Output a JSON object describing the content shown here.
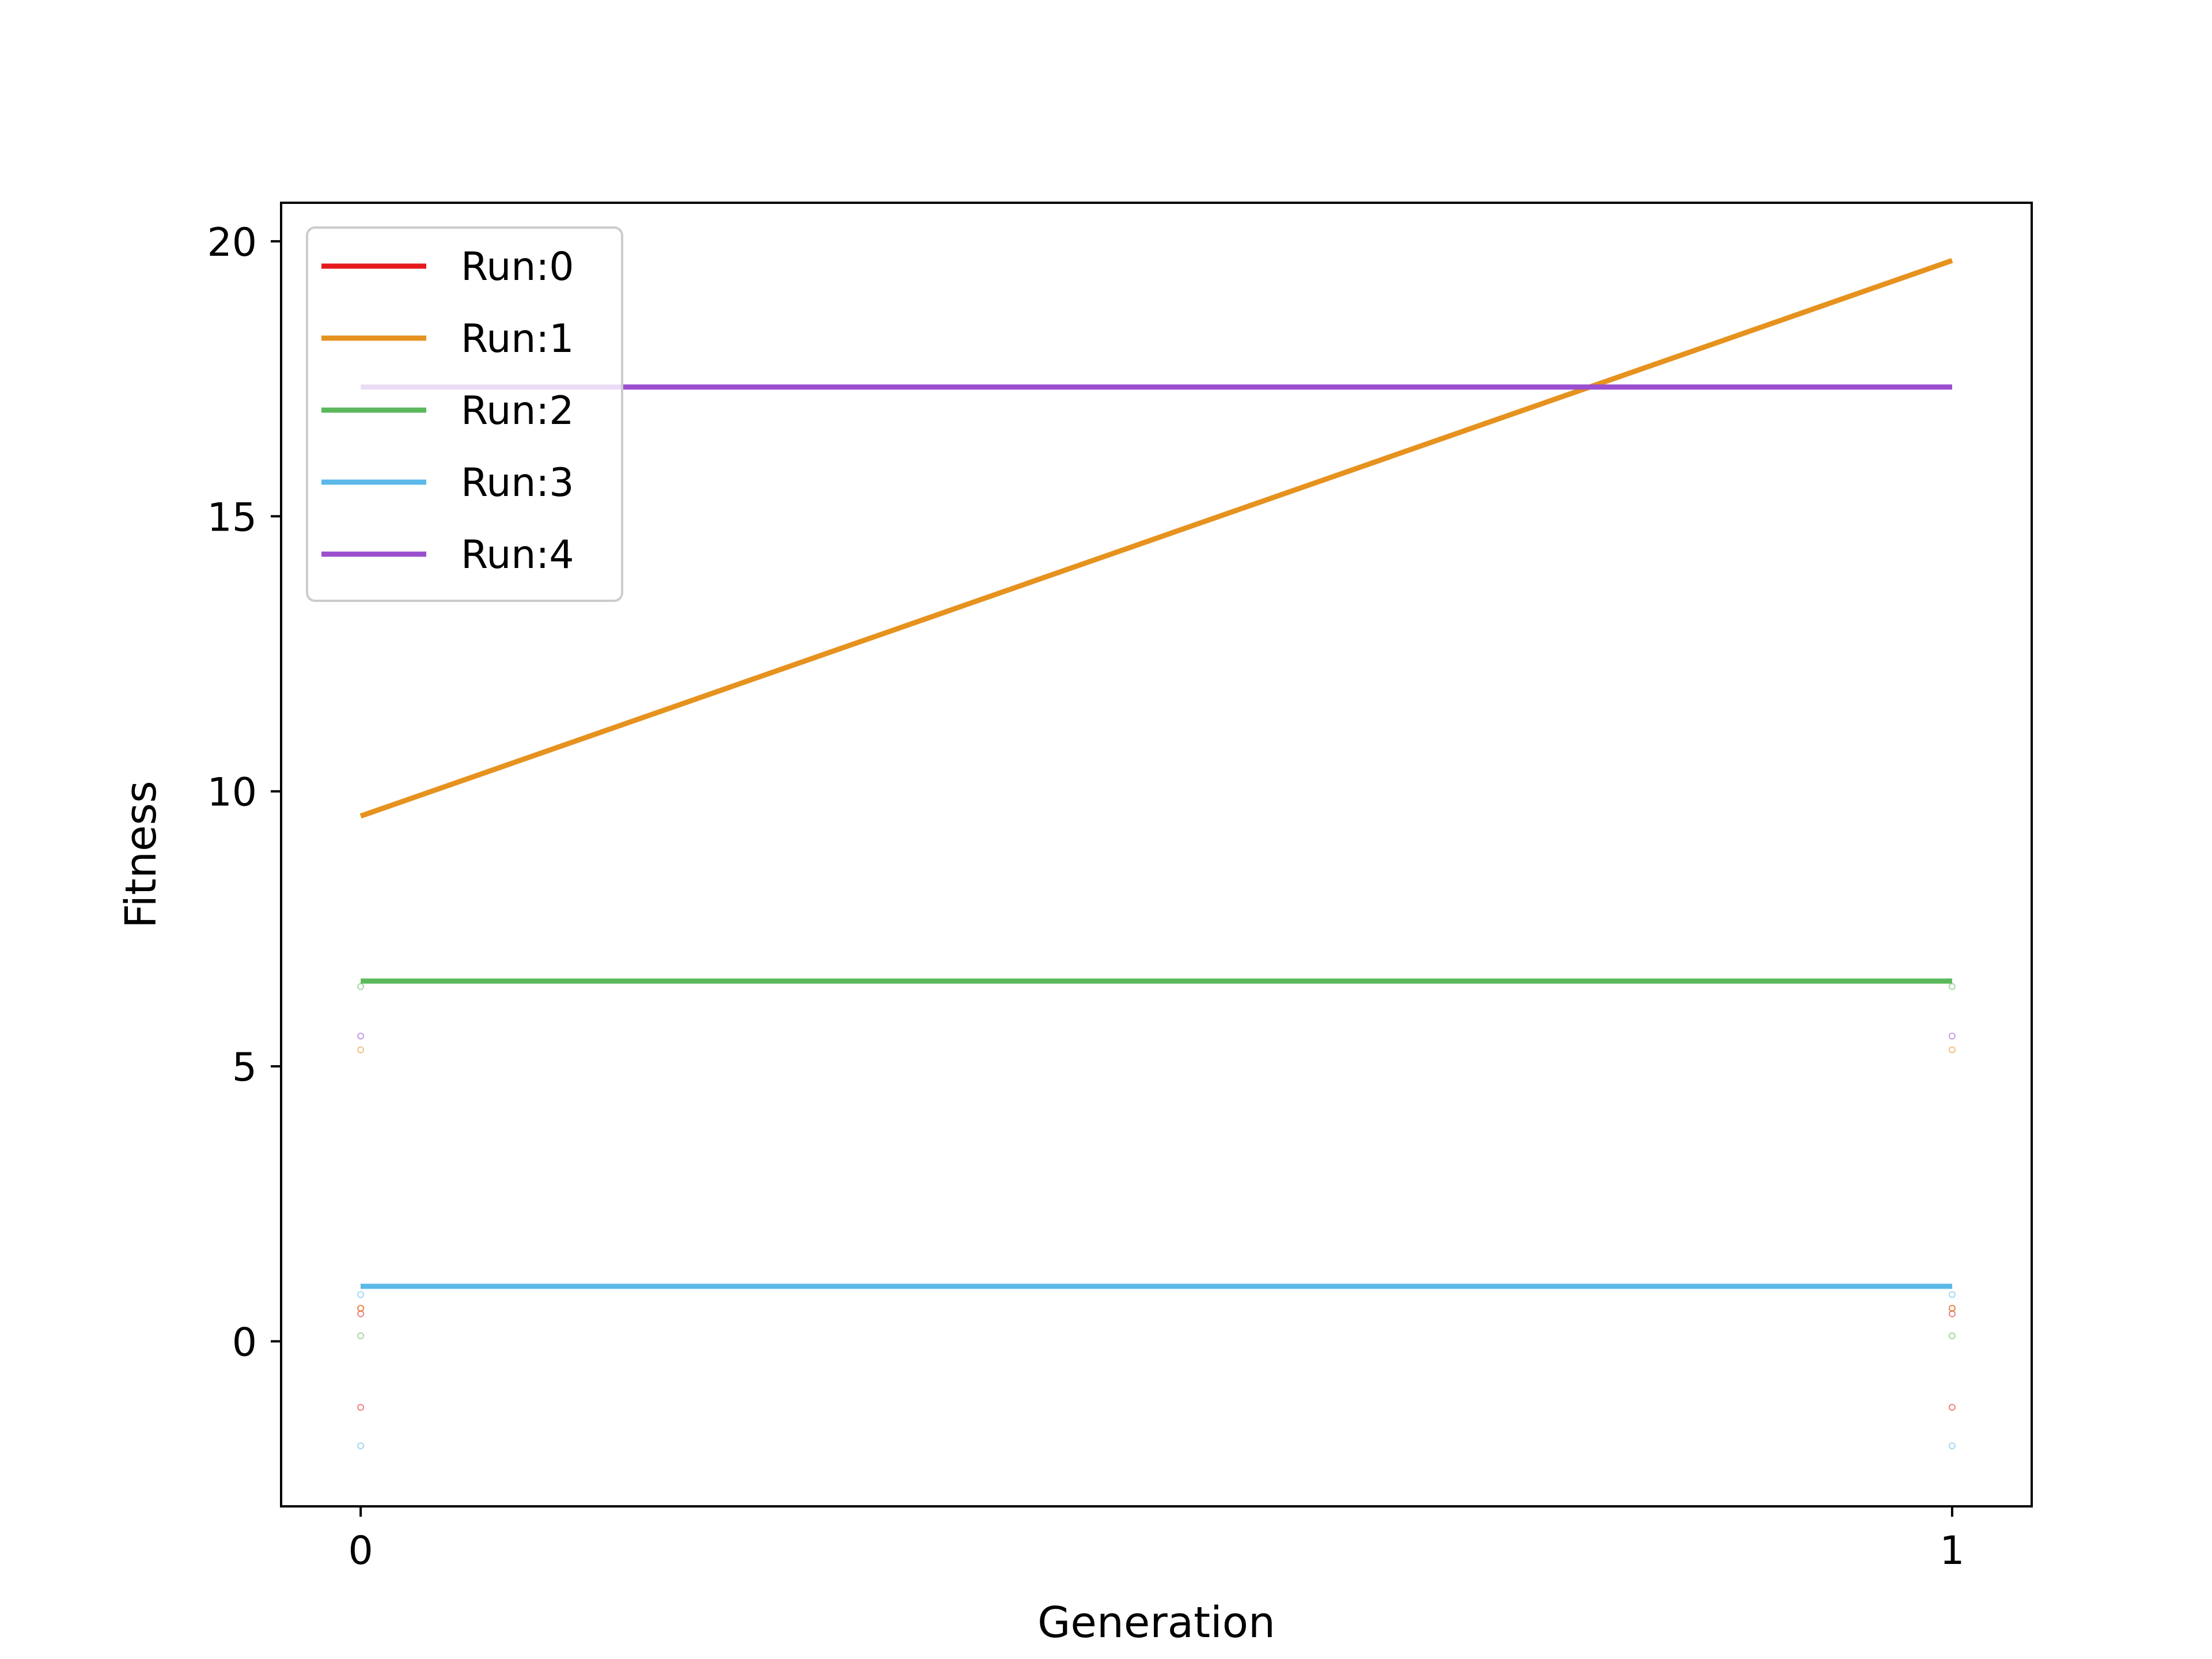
{
  "chart_data": {
    "type": "line",
    "xlabel": "Generation",
    "ylabel": "Fitness",
    "xlim": [
      -0.05,
      1.05
    ],
    "ylim": [
      -3.0,
      20.7
    ],
    "x_ticks": [
      0,
      1
    ],
    "x_tick_labels": [
      "0",
      "1"
    ],
    "y_ticks": [
      0,
      5,
      10,
      15,
      20
    ],
    "y_tick_labels": [
      "0",
      "5",
      "10",
      "15",
      "20"
    ],
    "grid": false,
    "legend_position": "top-left",
    "series": [
      {
        "name": "Run:0",
        "color": "#e41a1c",
        "x": [
          0,
          1
        ],
        "y": [
          1.0,
          1.0
        ],
        "points": [
          [
            0,
            0.6
          ],
          [
            0,
            0.5
          ],
          [
            0,
            -1.2
          ],
          [
            1,
            0.6
          ],
          [
            1,
            0.5
          ],
          [
            1,
            -1.2
          ]
        ]
      },
      {
        "name": "Run:1",
        "color": "#e6921e",
        "x": [
          0,
          1
        ],
        "y": [
          9.55,
          19.65
        ],
        "points": [
          [
            0,
            5.3
          ],
          [
            0,
            0.6
          ],
          [
            1,
            5.3
          ],
          [
            1,
            0.6
          ]
        ]
      },
      {
        "name": "Run:2",
        "color": "#5cb85c",
        "x": [
          0,
          1
        ],
        "y": [
          6.55,
          6.55
        ],
        "points": [
          [
            0,
            6.45
          ],
          [
            0,
            0.1
          ],
          [
            1,
            6.45
          ],
          [
            1,
            0.1
          ]
        ]
      },
      {
        "name": "Run:3",
        "color": "#5bb8e8",
        "x": [
          0,
          1
        ],
        "y": [
          1.0,
          1.0
        ],
        "points": [
          [
            0,
            0.85
          ],
          [
            0,
            -1.9
          ],
          [
            1,
            0.85
          ],
          [
            1,
            -1.9
          ]
        ]
      },
      {
        "name": "Run:4",
        "color": "#9b4fcf",
        "x": [
          0,
          1
        ],
        "y": [
          17.35,
          17.35
        ],
        "points": [
          [
            0,
            5.55
          ],
          [
            1,
            5.55
          ]
        ]
      }
    ]
  }
}
